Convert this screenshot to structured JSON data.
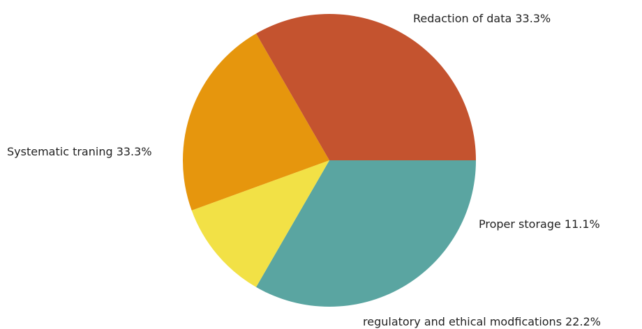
{
  "chart_data": {
    "type": "pie",
    "title": "",
    "slices": [
      {
        "label": "Redaction of data",
        "value": 33.3,
        "display": "33.3%",
        "color": "#5aa5a1"
      },
      {
        "label": "Proper storage",
        "value": 11.1,
        "display": "11.1%",
        "color": "#f2e146"
      },
      {
        "label": "regulatory and ethical modfications",
        "value": 22.2,
        "display": "22.2%",
        "color": "#e6960d"
      },
      {
        "label": "Systematic traning",
        "value": 33.3,
        "display": "33.3%",
        "color": "#c4532f"
      }
    ],
    "start_angle_deg": 0,
    "direction": "clockwise",
    "legend": "none"
  }
}
